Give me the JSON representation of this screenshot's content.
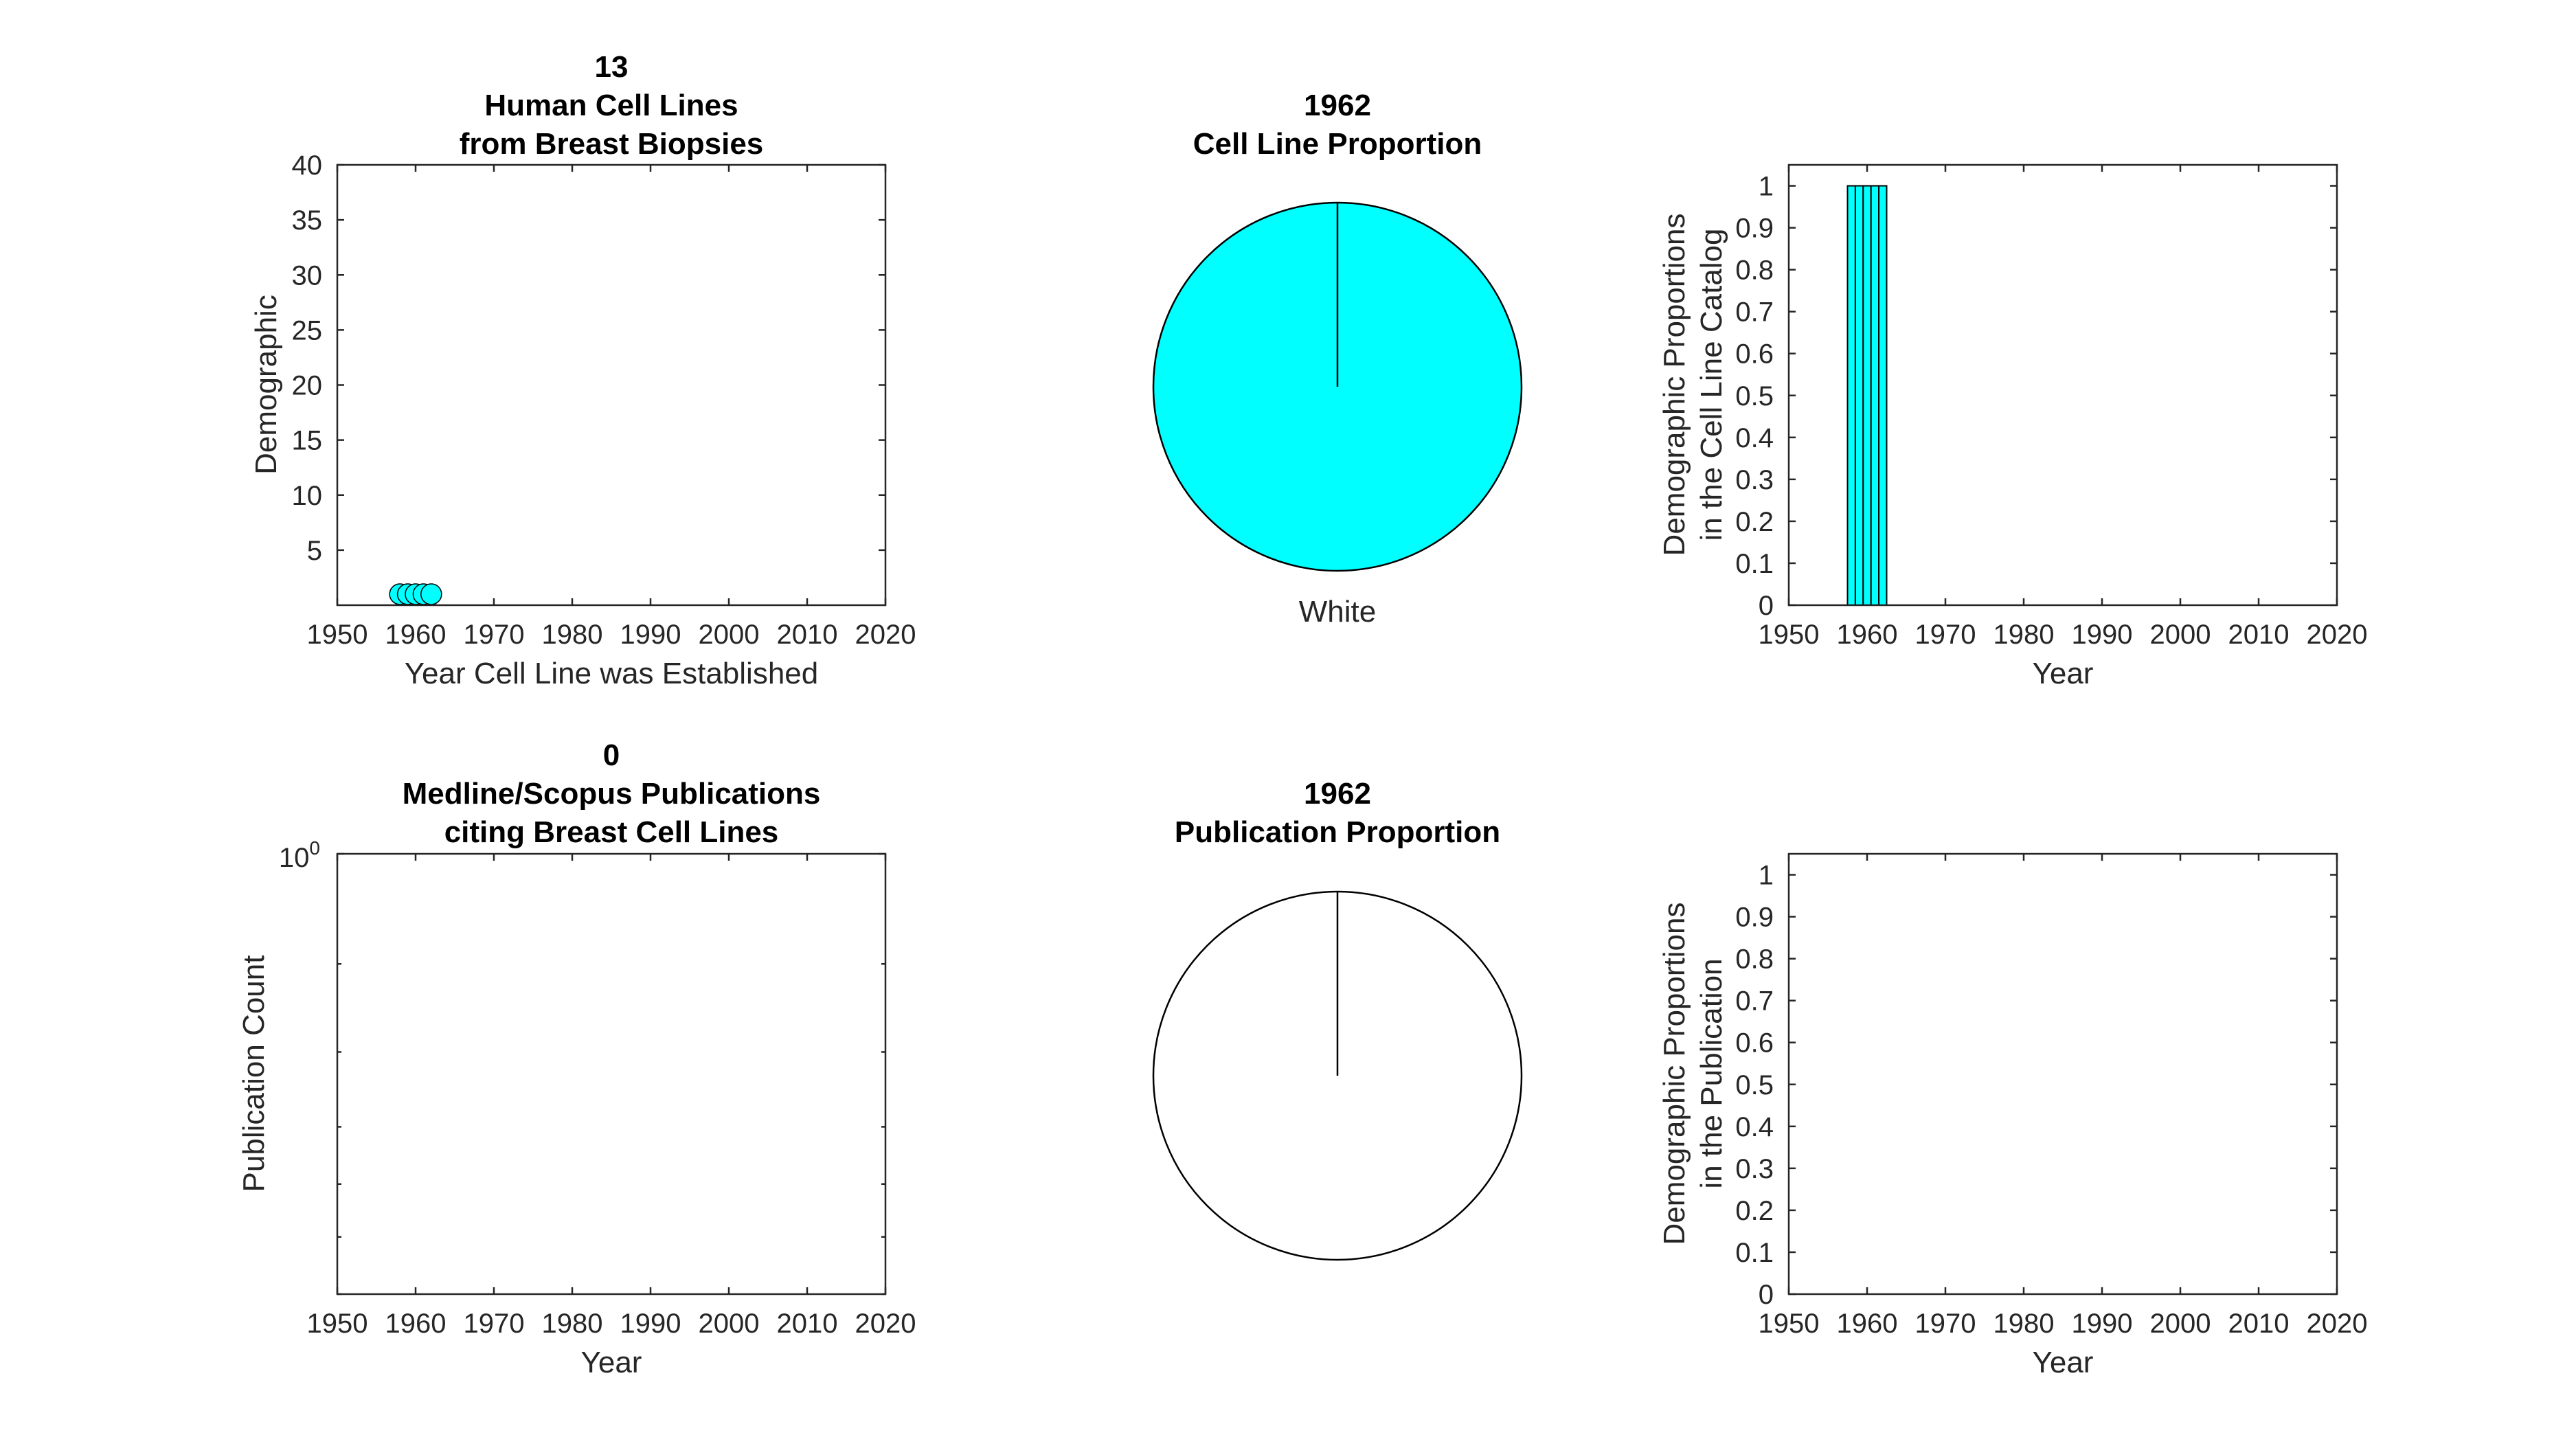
{
  "colors": {
    "white_demographic": "#00FFFF",
    "edge": "#000000",
    "axis": "#262626"
  },
  "chart_data": [
    {
      "id": "cell_lines",
      "type": "scatter",
      "title_lines": [
        "13",
        "Human Cell Lines",
        "from Breast Biopsies"
      ],
      "xlabel": "Year Cell Line was Established",
      "ylabel": "Demographic",
      "xlim": [
        1950,
        2020
      ],
      "ylim": [
        0,
        40
      ],
      "xticks": [
        "1950",
        "1960",
        "1970",
        "1980",
        "1990",
        "2000",
        "2010",
        "2020"
      ],
      "yticks": [
        "5",
        "10",
        "15",
        "20",
        "25",
        "30",
        "35",
        "40"
      ],
      "points": [
        {
          "x": 1958,
          "y": 1
        },
        {
          "x": 1959,
          "y": 1
        },
        {
          "x": 1960,
          "y": 1
        },
        {
          "x": 1961,
          "y": 1
        },
        {
          "x": 1962,
          "y": 1
        }
      ],
      "marker_color": "#00FFFF"
    },
    {
      "id": "cell_line_proportion",
      "type": "pie",
      "title_lines": [
        "1962",
        "Cell Line Proportion"
      ],
      "slices": [
        {
          "label": "White",
          "value": 1,
          "color": "#00FFFF"
        }
      ]
    },
    {
      "id": "catalog_proportions",
      "type": "bar",
      "xlabel": "Year",
      "ylabel_lines": [
        "Demographic Proportions",
        "in the Cell Line Catalog"
      ],
      "xlim": [
        1950,
        2020
      ],
      "ylim": [
        0,
        1.05
      ],
      "xticks": [
        "1950",
        "1960",
        "1970",
        "1980",
        "1990",
        "2000",
        "2010",
        "2020"
      ],
      "yticks": [
        "0",
        "0.1",
        "0.2",
        "0.3",
        "0.4",
        "0.5",
        "0.6",
        "0.7",
        "0.8",
        "0.9",
        "1"
      ],
      "categories": [
        1958,
        1959,
        1960,
        1961,
        1962
      ],
      "series": [
        {
          "values": [
            1,
            1,
            1,
            1,
            1
          ],
          "color": "#00FFFF"
        }
      ]
    },
    {
      "id": "publications",
      "type": "line",
      "title_lines": [
        "0",
        "Medline/Scopus Publications",
        "citing Breast Cell Lines"
      ],
      "xlabel": "Year",
      "ylabel": "Publication Count",
      "xlim": [
        1950,
        2020
      ],
      "yscale": "log",
      "xticks": [
        "1950",
        "1960",
        "1970",
        "1980",
        "1990",
        "2000",
        "2010",
        "2020"
      ],
      "ytick_top": {
        "base": "10",
        "exponent": "0"
      },
      "series": []
    },
    {
      "id": "publication_proportion",
      "type": "pie",
      "title_lines": [
        "1962",
        "Publication Proportion"
      ],
      "slices": []
    },
    {
      "id": "publication_proportions",
      "type": "bar",
      "xlabel": "Year",
      "ylabel_lines": [
        "Demographic Proportions",
        "in the Publication"
      ],
      "xlim": [
        1950,
        2020
      ],
      "ylim": [
        0,
        1.05
      ],
      "xticks": [
        "1950",
        "1960",
        "1970",
        "1980",
        "1990",
        "2000",
        "2010",
        "2020"
      ],
      "yticks": [
        "0",
        "0.1",
        "0.2",
        "0.3",
        "0.4",
        "0.5",
        "0.6",
        "0.7",
        "0.8",
        "0.9",
        "1"
      ],
      "categories": [],
      "series": []
    }
  ]
}
